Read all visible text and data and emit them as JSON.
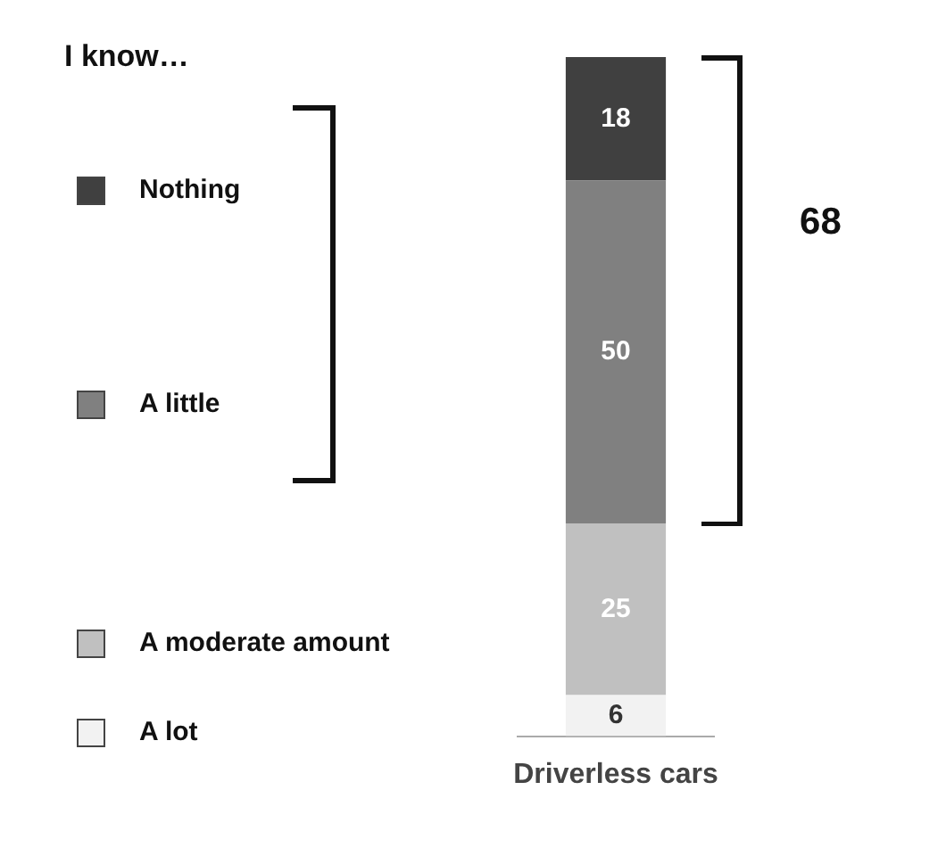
{
  "chart_data": {
    "type": "bar",
    "stacked": true,
    "legend": "left",
    "legend_title": "I know…",
    "categories": [
      "Driverless cars"
    ],
    "data_labels": true,
    "series": [
      {
        "name": "A lot",
        "color": "#f2f2f2",
        "values": [
          6
        ]
      },
      {
        "name": "A moderate amount",
        "color": "#c0c0c0",
        "values": [
          25
        ]
      },
      {
        "name": "A little",
        "color": "#808080",
        "values": [
          50
        ]
      },
      {
        "name": "Nothing",
        "color": "#404040",
        "values": [
          18
        ]
      }
    ],
    "annotations": [
      "68"
    ]
  }
}
